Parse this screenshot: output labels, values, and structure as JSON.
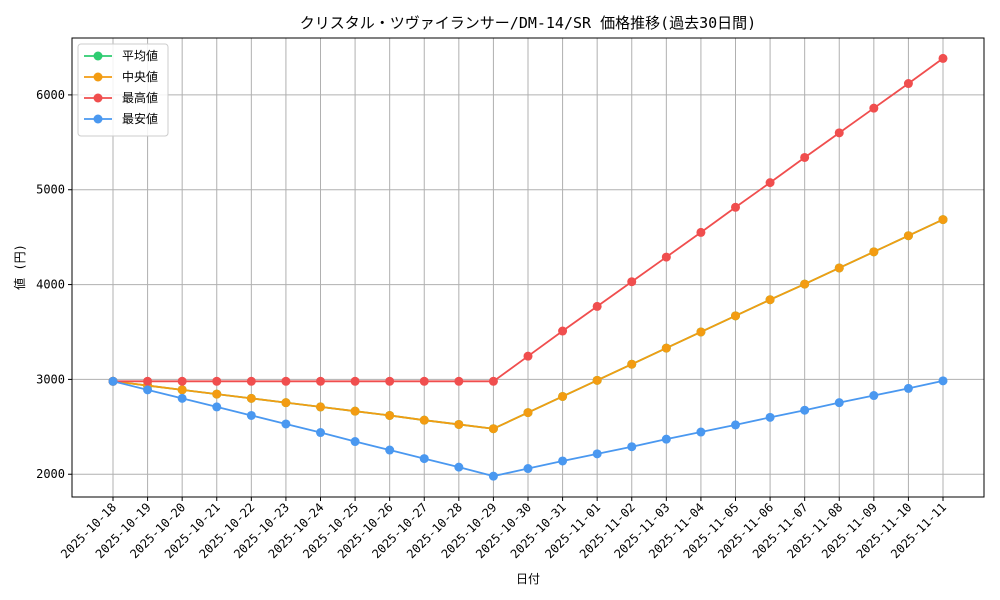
{
  "chart_data": {
    "type": "line",
    "title": "クリスタル・ツヴァイランサー/DM-14/SR 価格推移(過去30日間)",
    "xlabel": "日付",
    "ylabel": "値 (円)",
    "ylim": [
      1760,
      6600
    ],
    "yticks": [
      2000,
      3000,
      4000,
      5000,
      6000
    ],
    "grid": true,
    "legend_position": "top-left",
    "categories": [
      "2025-10-18",
      "2025-10-19",
      "2025-10-20",
      "2025-10-21",
      "2025-10-22",
      "2025-10-23",
      "2025-10-24",
      "2025-10-25",
      "2025-10-26",
      "2025-10-27",
      "2025-10-28",
      "2025-10-29",
      "2025-10-30",
      "2025-10-31",
      "2025-11-01",
      "2025-11-02",
      "2025-11-03",
      "2025-11-04",
      "2025-11-05",
      "2025-11-06",
      "2025-11-07",
      "2025-11-08",
      "2025-11-09",
      "2025-11-10",
      "2025-11-11"
    ],
    "series": [
      {
        "name": "平均値",
        "color": "#2ecc71",
        "values": [
          2980,
          2935,
          2890,
          2845,
          2800,
          2755,
          2710,
          2665,
          2620,
          2570,
          2525,
          2480,
          2650,
          2820,
          2990,
          3160,
          3330,
          3500,
          3670,
          3840,
          4005,
          4175,
          4345,
          4515,
          4685
        ]
      },
      {
        "name": "中央値",
        "color": "#f39c12",
        "values": [
          2980,
          2935,
          2890,
          2845,
          2800,
          2755,
          2710,
          2665,
          2620,
          2570,
          2525,
          2480,
          2650,
          2820,
          2990,
          3160,
          3330,
          3500,
          3670,
          3840,
          4005,
          4175,
          4345,
          4515,
          4685
        ]
      },
      {
        "name": "最高値",
        "color": "#f04e4e",
        "values": [
          2980,
          2980,
          2980,
          2980,
          2980,
          2980,
          2980,
          2980,
          2980,
          2980,
          2980,
          2980,
          3245,
          3510,
          3770,
          4030,
          4290,
          4550,
          4815,
          5075,
          5340,
          5600,
          5860,
          6120,
          6385
        ]
      },
      {
        "name": "最安値",
        "color": "#4a98f0",
        "values": [
          2980,
          2890,
          2800,
          2710,
          2620,
          2530,
          2440,
          2345,
          2255,
          2165,
          2075,
          1980,
          2060,
          2140,
          2215,
          2290,
          2370,
          2445,
          2520,
          2600,
          2675,
          2755,
          2830,
          2905,
          2985
        ]
      }
    ]
  }
}
